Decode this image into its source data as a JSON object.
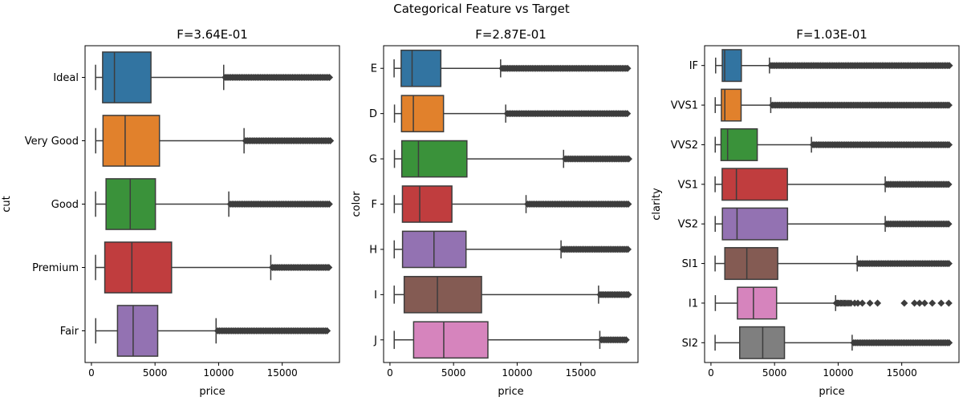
{
  "suptitle": "Categorical Feature vs Target",
  "chart_data": [
    {
      "type": "box",
      "title": "F=3.64E-01",
      "xlabel": "price",
      "ylabel": "cut",
      "xlim": [
        -500,
        19500
      ],
      "xticks": [
        0,
        5000,
        10000,
        15000
      ],
      "categories": [
        "Ideal",
        "Very Good",
        "Good",
        "Premium",
        "Fair"
      ],
      "colors": [
        "#3274a1",
        "#e1812c",
        "#3a923a",
        "#c03d3e",
        "#9372b2"
      ],
      "boxes": [
        {
          "whislo": 326,
          "q1": 880,
          "med": 1810,
          "q3": 4680,
          "whishi": 10400,
          "fliers_from": 10400,
          "fliers_to": 18800
        },
        {
          "whislo": 336,
          "q1": 910,
          "med": 2650,
          "q3": 5350,
          "whishi": 12000,
          "fliers_from": 12000,
          "fliers_to": 18800
        },
        {
          "whislo": 327,
          "q1": 1150,
          "med": 3050,
          "q3": 5030,
          "whishi": 10800,
          "fliers_from": 10800,
          "fliers_to": 18800
        },
        {
          "whislo": 326,
          "q1": 1050,
          "med": 3180,
          "q3": 6300,
          "whishi": 14100,
          "fliers_from": 14100,
          "fliers_to": 18800
        },
        {
          "whislo": 337,
          "q1": 2050,
          "med": 3280,
          "q3": 5210,
          "whishi": 9800,
          "fliers_from": 9800,
          "fliers_to": 18570
        }
      ]
    },
    {
      "type": "box",
      "title": "F=2.87E-01",
      "xlabel": "price",
      "ylabel": "color",
      "xlim": [
        -500,
        19500
      ],
      "xticks": [
        0,
        5000,
        10000,
        15000
      ],
      "categories": [
        "E",
        "D",
        "G",
        "F",
        "H",
        "I",
        "J"
      ],
      "colors": [
        "#3274a1",
        "#e1812c",
        "#3a923a",
        "#c03d3e",
        "#9372b2",
        "#845b53",
        "#d684bd"
      ],
      "boxes": [
        {
          "whislo": 326,
          "q1": 880,
          "med": 1740,
          "q3": 4000,
          "whishi": 8700,
          "fliers_from": 8700,
          "fliers_to": 18800
        },
        {
          "whislo": 357,
          "q1": 910,
          "med": 1840,
          "q3": 4210,
          "whishi": 9100,
          "fliers_from": 9100,
          "fliers_to": 18700
        },
        {
          "whislo": 354,
          "q1": 930,
          "med": 2240,
          "q3": 6050,
          "whishi": 13650,
          "fliers_from": 13650,
          "fliers_to": 18800
        },
        {
          "whislo": 342,
          "q1": 980,
          "med": 2340,
          "q3": 4870,
          "whishi": 10700,
          "fliers_from": 10700,
          "fliers_to": 18800
        },
        {
          "whislo": 337,
          "q1": 990,
          "med": 3460,
          "q3": 5980,
          "whishi": 13450,
          "fliers_from": 13450,
          "fliers_to": 18800
        },
        {
          "whislo": 334,
          "q1": 1120,
          "med": 3730,
          "q3": 7200,
          "whishi": 16400,
          "fliers_from": 16400,
          "fliers_to": 18800
        },
        {
          "whislo": 335,
          "q1": 1860,
          "med": 4230,
          "q3": 7700,
          "whishi": 16500,
          "fliers_from": 16500,
          "fliers_to": 18700
        }
      ]
    },
    {
      "type": "box",
      "title": "F=1.03E-01",
      "xlabel": "price",
      "ylabel": "clarity",
      "xlim": [
        -500,
        19500
      ],
      "xticks": [
        0,
        5000,
        10000,
        15000
      ],
      "categories": [
        "IF",
        "VVS1",
        "VVS2",
        "VS1",
        "VS2",
        "SI1",
        "I1",
        "SI2"
      ],
      "colors": [
        "#3274a1",
        "#e1812c",
        "#3a923a",
        "#c03d3e",
        "#9372b2",
        "#845b53",
        "#d684bd",
        "#7f7f7f"
      ],
      "boxes": [
        {
          "whislo": 369,
          "q1": 890,
          "med": 1080,
          "q3": 2390,
          "whishi": 4600,
          "fliers_from": 4600,
          "fliers_to": 18800
        },
        {
          "whislo": 336,
          "q1": 820,
          "med": 1090,
          "q3": 2370,
          "whishi": 4700,
          "fliers_from": 4700,
          "fliers_to": 18800
        },
        {
          "whislo": 336,
          "q1": 790,
          "med": 1310,
          "q3": 3640,
          "whishi": 7900,
          "fliers_from": 7900,
          "fliers_to": 18800
        },
        {
          "whislo": 327,
          "q1": 880,
          "med": 2000,
          "q3": 6010,
          "whishi": 13700,
          "fliers_from": 13700,
          "fliers_to": 18800
        },
        {
          "whislo": 334,
          "q1": 900,
          "med": 2050,
          "q3": 6020,
          "whishi": 13700,
          "fliers_from": 13700,
          "fliers_to": 18800
        },
        {
          "whislo": 326,
          "q1": 1090,
          "med": 2820,
          "q3": 5250,
          "whishi": 11500,
          "fliers_from": 11500,
          "fliers_to": 18800
        },
        {
          "whislo": 345,
          "q1": 2080,
          "med": 3340,
          "q3": 5160,
          "whishi": 9800,
          "fliers_list": [
            9850,
            9950,
            10050,
            10200,
            10300,
            10450,
            10550,
            10700,
            10850,
            11000,
            11300,
            11550,
            11900,
            12500,
            13100,
            15200,
            16000,
            16400,
            16800,
            17400,
            18100,
            18700
          ]
        },
        {
          "whislo": 326,
          "q1": 2260,
          "med": 4070,
          "q3": 5780,
          "whishi": 11100,
          "fliers_from": 11100,
          "fliers_to": 18800
        }
      ]
    }
  ]
}
